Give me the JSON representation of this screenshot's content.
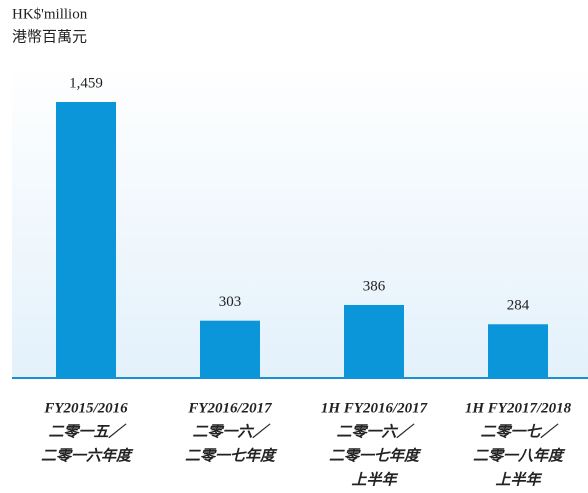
{
  "chart_data": {
    "type": "bar",
    "units": [
      "HK$'million",
      "港幣百萬元"
    ],
    "categories": [
      [
        "FY2015/2016",
        "二零一五／",
        "二零一六年度"
      ],
      [
        "FY2016/2017",
        "二零一六／",
        "二零一七年度"
      ],
      [
        "1H FY2016/2017",
        "二零一六／",
        "二零一七年度",
        "上半年"
      ],
      [
        "1H FY2017/2018",
        "二零一七／",
        "二零一八年度",
        "上半年"
      ]
    ],
    "values": [
      1459,
      303,
      386,
      284
    ],
    "value_labels": [
      "1,459",
      "303",
      "386",
      "284"
    ],
    "color": "#0a96d9"
  }
}
